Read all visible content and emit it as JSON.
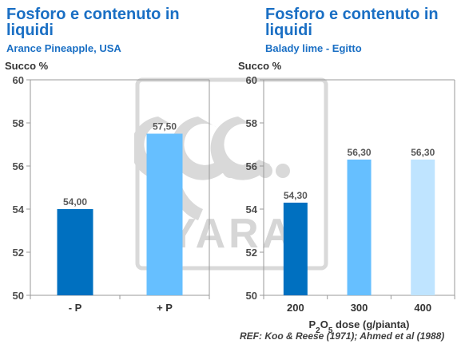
{
  "colors": {
    "title": "#1a6fc4",
    "axis": "#999999",
    "tick_text": "#4d4d4d",
    "label_text": "#595959",
    "watermark": "#d6d6d6"
  },
  "watermark": {
    "text": "YARA",
    "icon": "yara-logo-watermark"
  },
  "reference": "REF: Koo & Reese (1971); Ahmed et al (1988)",
  "chart_data": [
    {
      "type": "bar",
      "title": "Fosforo e contenuto in liquidi",
      "subtitle": "Arance Pineapple, USA",
      "ylabel": "Succo %",
      "xlabel": "",
      "ylim": [
        50,
        60
      ],
      "yticks": [
        "50",
        "52",
        "54",
        "56",
        "58",
        "60"
      ],
      "categories": [
        "- P",
        "+ P"
      ],
      "values": [
        54.0,
        57.5
      ],
      "value_labels": [
        "54,00",
        "57,50"
      ],
      "bar_colors": [
        "#0070c0",
        "#66bfff"
      ],
      "grid": false,
      "legend": "none"
    },
    {
      "type": "bar",
      "title": "Fosforo e contenuto in liquidi",
      "subtitle": "Balady lime - Egitto",
      "ylabel": "Succo %",
      "xlabel_parts": [
        "P",
        "2",
        "O",
        "5",
        " dose (g/pianta)"
      ],
      "ylim": [
        50,
        60
      ],
      "yticks": [
        "50",
        "52",
        "54",
        "56",
        "58",
        "60"
      ],
      "categories": [
        "200",
        "300",
        "400"
      ],
      "values": [
        54.3,
        56.3,
        56.3
      ],
      "value_labels": [
        "54,30",
        "56,30",
        "56,30"
      ],
      "bar_colors": [
        "#0070c0",
        "#66bfff",
        "#bfe4ff"
      ],
      "grid": false,
      "legend": "none"
    }
  ]
}
